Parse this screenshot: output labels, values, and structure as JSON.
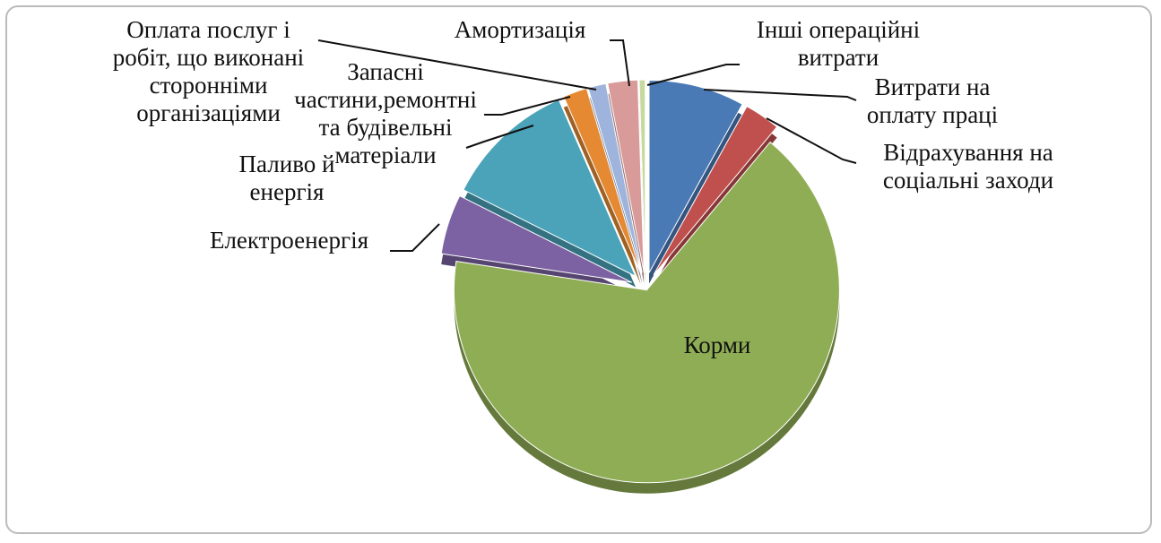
{
  "chart_data": {
    "type": "pie",
    "categories": [
      "Витрати на оплату праці",
      "Відрахування на соціальні заходи",
      "Корми",
      "Електроенергія",
      "Паливо й енергія",
      "Запасні частини,ремонтні та будівельні матеріали",
      "Оплата послуг і робіт, що виконані сторонніми організаціями",
      "Амортизація",
      "Інші операційні витрати"
    ],
    "values": [
      8,
      3,
      66,
      5,
      11,
      2,
      1.5,
      2.5,
      0.5
    ],
    "colors": [
      "#4a7ab5",
      "#c0504d",
      "#8fad55",
      "#7c62a2",
      "#4aa3b8",
      "#e58a33",
      "#9fb4dc",
      "#d99a9a",
      "#c8d8a0"
    ]
  }
}
